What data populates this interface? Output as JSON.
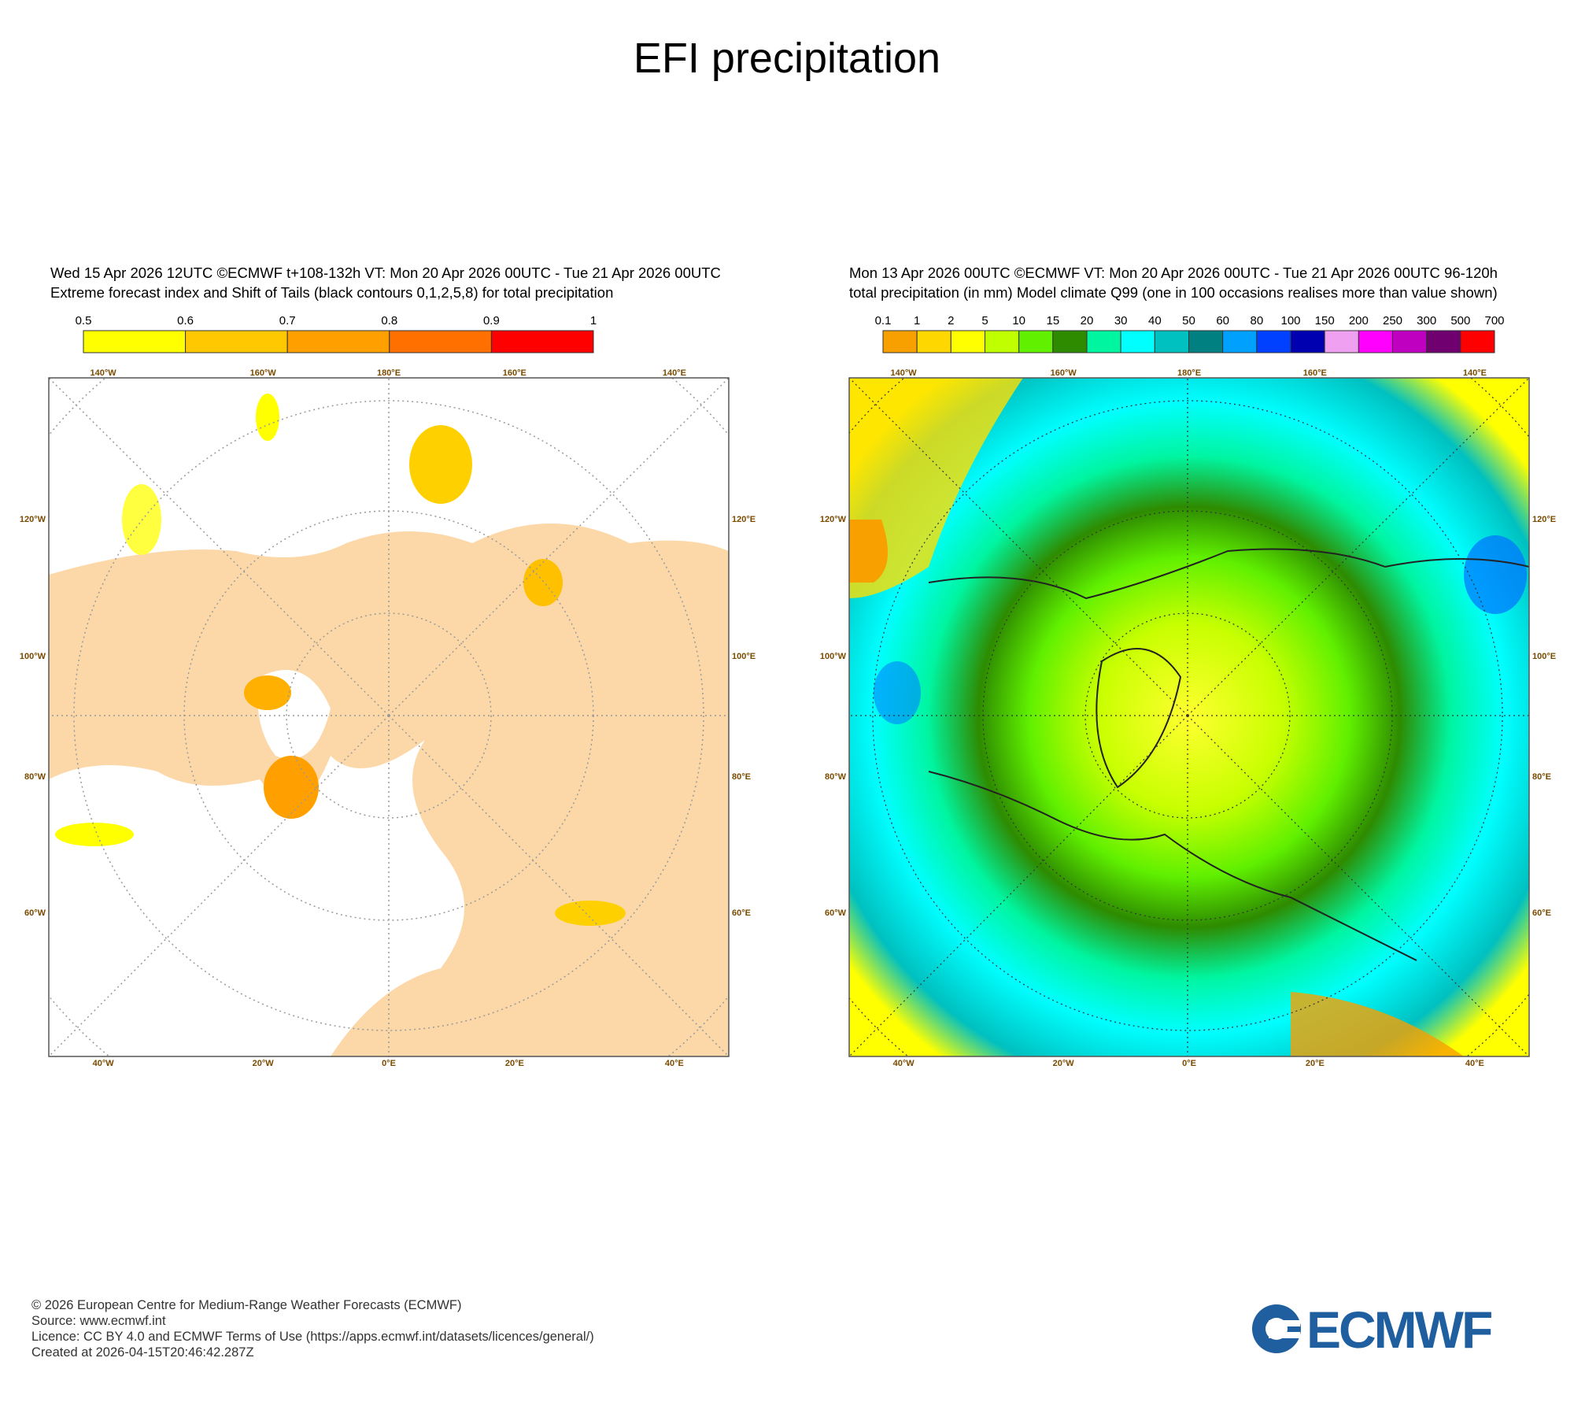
{
  "title": "EFI precipitation",
  "map_axes": {
    "top": [
      "140°W",
      "160°W",
      "180°E",
      "160°E",
      "140°E"
    ],
    "bottom": [
      "40°W",
      "20°W",
      "0°E",
      "20°E",
      "40°E"
    ],
    "left": [
      "120°W",
      "100°W",
      "80°W",
      "60°W"
    ],
    "right": [
      "120°E",
      "100°E",
      "80°E",
      "60°E"
    ]
  },
  "panels": [
    {
      "header": [
        "Wed 15 Apr 2026 12UTC ©ECMWF t+108-132h  VT: Mon 20 Apr 2026 00UTC - Tue 21 Apr 2026 00UTC",
        "Extreme forecast index and Shift of Tails (black contours 0,1,2,5,8) for total precipitation"
      ],
      "colorbar": {
        "labels": [
          "0.5",
          "0.6",
          "0.7",
          "0.8",
          "0.9",
          "1"
        ],
        "colors": [
          "#ffff00",
          "#ffc800",
          "#ffa000",
          "#ff7000",
          "#ff0000"
        ]
      }
    },
    {
      "header": [
        "Mon 13 Apr 2026 00UTC ©ECMWF VT: Mon 20 Apr 2026 00UTC - Tue 21 Apr 2026 00UTC   96-120h",
        "total precipitation (in mm)  Model climate Q99 (one in 100 occasions realises more than value shown)"
      ],
      "colorbar": {
        "labels": [
          "0.1",
          "1",
          "2",
          "5",
          "10",
          "15",
          "20",
          "30",
          "40",
          "50",
          "60",
          "80",
          "100",
          "150",
          "200",
          "250",
          "300",
          "500",
          "700"
        ],
        "colors": [
          "#f7a000",
          "#ffd700",
          "#ffff00",
          "#c0ff00",
          "#60f000",
          "#2e8b00",
          "#00f5a0",
          "#00ffff",
          "#00c0c0",
          "#008080",
          "#00a0ff",
          "#0040ff",
          "#0000b0",
          "#f0a0f0",
          "#ff00ff",
          "#c000c0",
          "#700070",
          "#ff0000"
        ]
      }
    }
  ],
  "footer": [
    "© 2026 European Centre for Medium-Range Weather Forecasts (ECMWF)",
    "Source: www.ecmwf.int",
    "Licence: CC BY 4.0 and ECMWF Terms of Use (https://apps.ecmwf.int/datasets/licences/general/)",
    "Created at 2026-04-15T20:46:42.287Z"
  ],
  "logo": "ECMWF"
}
